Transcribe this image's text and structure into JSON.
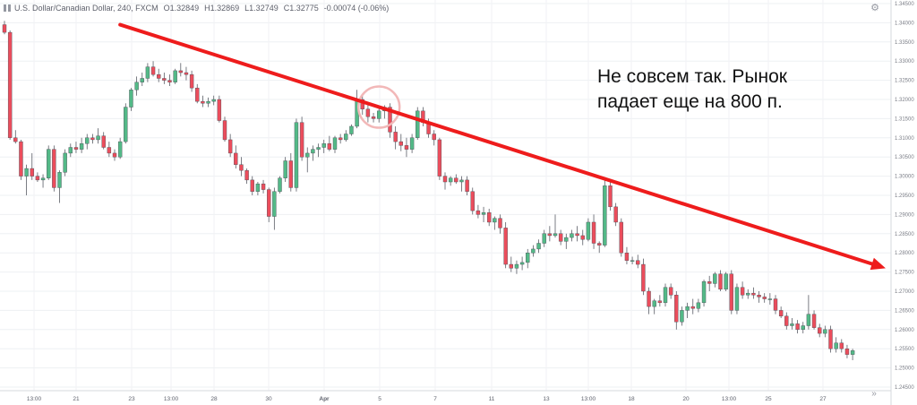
{
  "header": {
    "title": "U.S. Dollar/Canadian Dollar, 240, FXCM",
    "open": "O1.32849",
    "high": "H1.32869",
    "low": "L1.32749",
    "close": "C1.32775",
    "change": "-0.00074 (-0.06%)"
  },
  "annotation": {
    "line1": "Не совсем так. Рынок",
    "line2": "падает еще на 800 п."
  },
  "colors": {
    "up": "#53b987",
    "down": "#eb4d5c",
    "arrow": "#ee1c1c",
    "highlight": "#f2b8b8"
  },
  "chart_data": {
    "type": "candlestick",
    "title": "U.S. Dollar/Canadian Dollar, 240, FXCM",
    "ylim": [
      1.245,
      1.345
    ],
    "y_ticks": [
      "1.34500",
      "1.34000",
      "1.33500",
      "1.33000",
      "1.32500",
      "1.32000",
      "1.31500",
      "1.31000",
      "1.30500",
      "1.30000",
      "1.29500",
      "1.29000",
      "1.28500",
      "1.28000",
      "1.27500",
      "1.27000",
      "1.26500",
      "1.26000",
      "1.25500",
      "1.25000",
      "1.24500"
    ],
    "x_ticks": [
      "13:00",
      "21",
      "23",
      "13:00",
      "28",
      "30",
      "Apr",
      "5",
      "7",
      "11",
      "13",
      "13:00",
      "18",
      "20",
      "13:00",
      "25",
      "27"
    ],
    "series": [
      {
        "values": [
          [
            1.3395,
            1.3405,
            1.337,
            1.3375
          ],
          [
            1.3375,
            1.338,
            1.3095,
            1.31
          ],
          [
            1.31,
            1.312,
            1.3085,
            1.309
          ],
          [
            1.309,
            1.3095,
            1.299,
            1.3
          ],
          [
            1.3,
            1.303,
            1.295,
            1.302
          ],
          [
            1.302,
            1.306,
            1.299,
            1.3
          ],
          [
            1.3,
            1.301,
            1.2985,
            1.299
          ],
          [
            1.299,
            1.3005,
            1.297,
            1.2995
          ],
          [
            1.2995,
            1.308,
            1.299,
            1.307
          ],
          [
            1.307,
            1.308,
            1.296,
            1.297
          ],
          [
            1.297,
            1.3015,
            1.293,
            1.301
          ],
          [
            1.301,
            1.307,
            1.3,
            1.306
          ],
          [
            1.306,
            1.3085,
            1.305,
            1.3075
          ],
          [
            1.3075,
            1.309,
            1.306,
            1.307
          ],
          [
            1.307,
            1.31,
            1.306,
            1.3085
          ],
          [
            1.3085,
            1.311,
            1.307,
            1.31
          ],
          [
            1.31,
            1.311,
            1.3085,
            1.3095
          ],
          [
            1.3095,
            1.3125,
            1.3085,
            1.3105
          ],
          [
            1.3105,
            1.3115,
            1.307,
            1.3075
          ],
          [
            1.3075,
            1.309,
            1.305,
            1.306
          ],
          [
            1.306,
            1.307,
            1.304,
            1.305
          ],
          [
            1.305,
            1.31,
            1.3045,
            1.309
          ],
          [
            1.309,
            1.319,
            1.3085,
            1.318
          ],
          [
            1.318,
            1.323,
            1.317,
            1.3225
          ],
          [
            1.3225,
            1.326,
            1.321,
            1.3245
          ],
          [
            1.3245,
            1.327,
            1.3235,
            1.3255
          ],
          [
            1.3255,
            1.3295,
            1.3245,
            1.3285
          ],
          [
            1.3285,
            1.33,
            1.326,
            1.3265
          ],
          [
            1.3265,
            1.328,
            1.3245,
            1.3255
          ],
          [
            1.3255,
            1.327,
            1.324,
            1.325
          ],
          [
            1.325,
            1.3265,
            1.3235,
            1.3245
          ],
          [
            1.3245,
            1.328,
            1.324,
            1.3275
          ],
          [
            1.3275,
            1.3295,
            1.326,
            1.327
          ],
          [
            1.327,
            1.3285,
            1.325,
            1.3265
          ],
          [
            1.3265,
            1.3275,
            1.322,
            1.323
          ],
          [
            1.323,
            1.324,
            1.319,
            1.3195
          ],
          [
            1.3195,
            1.321,
            1.318,
            1.319
          ],
          [
            1.319,
            1.3205,
            1.318,
            1.3195
          ],
          [
            1.3195,
            1.321,
            1.3185,
            1.32
          ],
          [
            1.32,
            1.321,
            1.314,
            1.3145
          ],
          [
            1.3145,
            1.3155,
            1.309,
            1.3095
          ],
          [
            1.3095,
            1.311,
            1.305,
            1.306
          ],
          [
            1.306,
            1.308,
            1.302,
            1.303
          ],
          [
            1.303,
            1.305,
            1.3,
            1.3015
          ],
          [
            1.3015,
            1.302,
            1.298,
            1.299
          ],
          [
            1.299,
            1.3,
            1.295,
            1.296
          ],
          [
            1.296,
            1.2985,
            1.295,
            1.298
          ],
          [
            1.298,
            1.299,
            1.2955,
            1.2965
          ],
          [
            1.2965,
            1.297,
            1.288,
            1.2895
          ],
          [
            1.2895,
            1.297,
            1.286,
            1.296
          ],
          [
            1.296,
            1.3,
            1.2955,
            1.2995
          ],
          [
            1.2995,
            1.305,
            1.2985,
            1.304
          ],
          [
            1.304,
            1.306,
            1.296,
            1.297
          ],
          [
            1.297,
            1.315,
            1.296,
            1.314
          ],
          [
            1.314,
            1.3155,
            1.304,
            1.305
          ],
          [
            1.305,
            1.3075,
            1.301,
            1.306
          ],
          [
            1.306,
            1.308,
            1.304,
            1.307
          ],
          [
            1.307,
            1.3085,
            1.305,
            1.3075
          ],
          [
            1.3075,
            1.3095,
            1.306,
            1.3085
          ],
          [
            1.3085,
            1.3105,
            1.3065,
            1.307
          ],
          [
            1.307,
            1.3105,
            1.306,
            1.31
          ],
          [
            1.31,
            1.311,
            1.3085,
            1.3095
          ],
          [
            1.3095,
            1.312,
            1.309,
            1.311
          ],
          [
            1.311,
            1.3135,
            1.3105,
            1.313
          ],
          [
            1.313,
            1.3225,
            1.3125,
            1.32
          ],
          [
            1.32,
            1.3215,
            1.316,
            1.3175
          ],
          [
            1.3175,
            1.3185,
            1.314,
            1.3155
          ],
          [
            1.3155,
            1.3165,
            1.314,
            1.315
          ],
          [
            1.315,
            1.318,
            1.314,
            1.317
          ],
          [
            1.317,
            1.3185,
            1.315,
            1.318
          ],
          [
            1.318,
            1.319,
            1.31,
            1.3115
          ],
          [
            1.3115,
            1.313,
            1.307,
            1.309
          ],
          [
            1.309,
            1.311,
            1.3065,
            1.308
          ],
          [
            1.308,
            1.31,
            1.305,
            1.307
          ],
          [
            1.307,
            1.311,
            1.306,
            1.31
          ],
          [
            1.31,
            1.318,
            1.3095,
            1.317
          ],
          [
            1.317,
            1.318,
            1.313,
            1.314
          ],
          [
            1.314,
            1.315,
            1.31,
            1.311
          ],
          [
            1.311,
            1.312,
            1.308,
            1.3095
          ],
          [
            1.3095,
            1.31,
            1.299,
            1.3
          ],
          [
            1.3,
            1.301,
            1.2965,
            1.2985
          ],
          [
            1.2985,
            1.3,
            1.2975,
            1.2995
          ],
          [
            1.2995,
            1.3005,
            1.298,
            1.2985
          ],
          [
            1.2985,
            1.3,
            1.296,
            1.299
          ],
          [
            1.299,
            1.3,
            1.295,
            1.296
          ],
          [
            1.296,
            1.297,
            1.29,
            1.291
          ],
          [
            1.291,
            1.2925,
            1.289,
            1.29
          ],
          [
            1.29,
            1.292,
            1.288,
            1.2905
          ],
          [
            1.2905,
            1.2915,
            1.287,
            1.288
          ],
          [
            1.288,
            1.2895,
            1.286,
            1.289
          ],
          [
            1.289,
            1.29,
            1.285,
            1.2865
          ],
          [
            1.2865,
            1.288,
            1.276,
            1.277
          ],
          [
            1.277,
            1.279,
            1.275,
            1.276
          ],
          [
            1.276,
            1.278,
            1.2745,
            1.277
          ],
          [
            1.277,
            1.279,
            1.2755,
            1.2775
          ],
          [
            1.2775,
            1.281,
            1.276,
            1.28
          ],
          [
            1.28,
            1.282,
            1.279,
            1.281
          ],
          [
            1.281,
            1.2835,
            1.28,
            1.2825
          ],
          [
            1.2825,
            1.286,
            1.2815,
            1.285
          ],
          [
            1.285,
            1.287,
            1.283,
            1.2845
          ],
          [
            1.2845,
            1.29,
            1.284,
            1.285
          ],
          [
            1.285,
            1.286,
            1.282,
            1.283
          ],
          [
            1.283,
            1.285,
            1.281,
            1.284
          ],
          [
            1.284,
            1.286,
            1.283,
            1.285
          ],
          [
            1.285,
            1.287,
            1.283,
            1.2845
          ],
          [
            1.2845,
            1.286,
            1.282,
            1.2835
          ],
          [
            1.2835,
            1.289,
            1.283,
            1.288
          ],
          [
            1.288,
            1.29,
            1.281,
            1.2825
          ],
          [
            1.2825,
            1.283,
            1.28,
            1.282
          ],
          [
            1.282,
            1.299,
            1.2815,
            1.2975
          ],
          [
            1.2975,
            1.299,
            1.291,
            1.292
          ],
          [
            1.292,
            1.293,
            1.287,
            1.288
          ],
          [
            1.288,
            1.289,
            1.279,
            1.28
          ],
          [
            1.28,
            1.2815,
            1.277,
            1.278
          ],
          [
            1.278,
            1.279,
            1.277,
            1.278
          ],
          [
            1.278,
            1.2795,
            1.276,
            1.277
          ],
          [
            1.277,
            1.2785,
            1.269,
            1.27
          ],
          [
            1.27,
            1.271,
            1.264,
            1.266
          ],
          [
            1.266,
            1.268,
            1.264,
            1.2675
          ],
          [
            1.2675,
            1.269,
            1.266,
            1.267
          ],
          [
            1.267,
            1.272,
            1.266,
            1.271
          ],
          [
            1.271,
            1.272,
            1.268,
            1.269
          ],
          [
            1.269,
            1.27,
            1.26,
            1.262
          ],
          [
            1.262,
            1.266,
            1.261,
            1.265
          ],
          [
            1.265,
            1.267,
            1.263,
            1.266
          ],
          [
            1.266,
            1.268,
            1.264,
            1.2655
          ],
          [
            1.2655,
            1.268,
            1.2645,
            1.267
          ],
          [
            1.267,
            1.273,
            1.266,
            1.2725
          ],
          [
            1.2725,
            1.274,
            1.27,
            1.272
          ],
          [
            1.272,
            1.275,
            1.271,
            1.2745
          ],
          [
            1.2745,
            1.2755,
            1.27,
            1.2705
          ],
          [
            1.2705,
            1.275,
            1.27,
            1.2745
          ],
          [
            1.2745,
            1.2755,
            1.264,
            1.265
          ],
          [
            1.265,
            1.272,
            1.264,
            1.271
          ],
          [
            1.271,
            1.2725,
            1.268,
            1.269
          ],
          [
            1.269,
            1.2705,
            1.268,
            1.2695
          ],
          [
            1.2695,
            1.271,
            1.268,
            1.269
          ],
          [
            1.269,
            1.27,
            1.267,
            1.2685
          ],
          [
            1.2685,
            1.2695,
            1.267,
            1.268
          ],
          [
            1.268,
            1.2695,
            1.2665,
            1.268
          ],
          [
            1.268,
            1.269,
            1.264,
            1.265
          ],
          [
            1.265,
            1.266,
            1.263,
            1.2635
          ],
          [
            1.2635,
            1.2645,
            1.26,
            1.261
          ],
          [
            1.261,
            1.263,
            1.26,
            1.2615
          ],
          [
            1.2615,
            1.2625,
            1.259,
            1.26
          ],
          [
            1.26,
            1.262,
            1.259,
            1.261
          ],
          [
            1.261,
            1.269,
            1.26,
            1.264
          ],
          [
            1.264,
            1.265,
            1.26,
            1.2605
          ],
          [
            1.2605,
            1.2615,
            1.258,
            1.259
          ],
          [
            1.259,
            1.261,
            1.258,
            1.26
          ],
          [
            1.26,
            1.261,
            1.254,
            1.255
          ],
          [
            1.255,
            1.258,
            1.254,
            1.2565
          ],
          [
            1.2565,
            1.2575,
            1.254,
            1.255
          ],
          [
            1.255,
            1.256,
            1.2525,
            1.2535
          ],
          [
            1.2535,
            1.255,
            1.252,
            1.2545
          ]
        ]
      }
    ],
    "annotations": [
      {
        "type": "trend-arrow",
        "from": [
          21,
          1.3395
        ],
        "to": [
          160,
          1.276
        ]
      },
      {
        "type": "circle",
        "center": [
          68,
          1.318
        ]
      }
    ]
  }
}
